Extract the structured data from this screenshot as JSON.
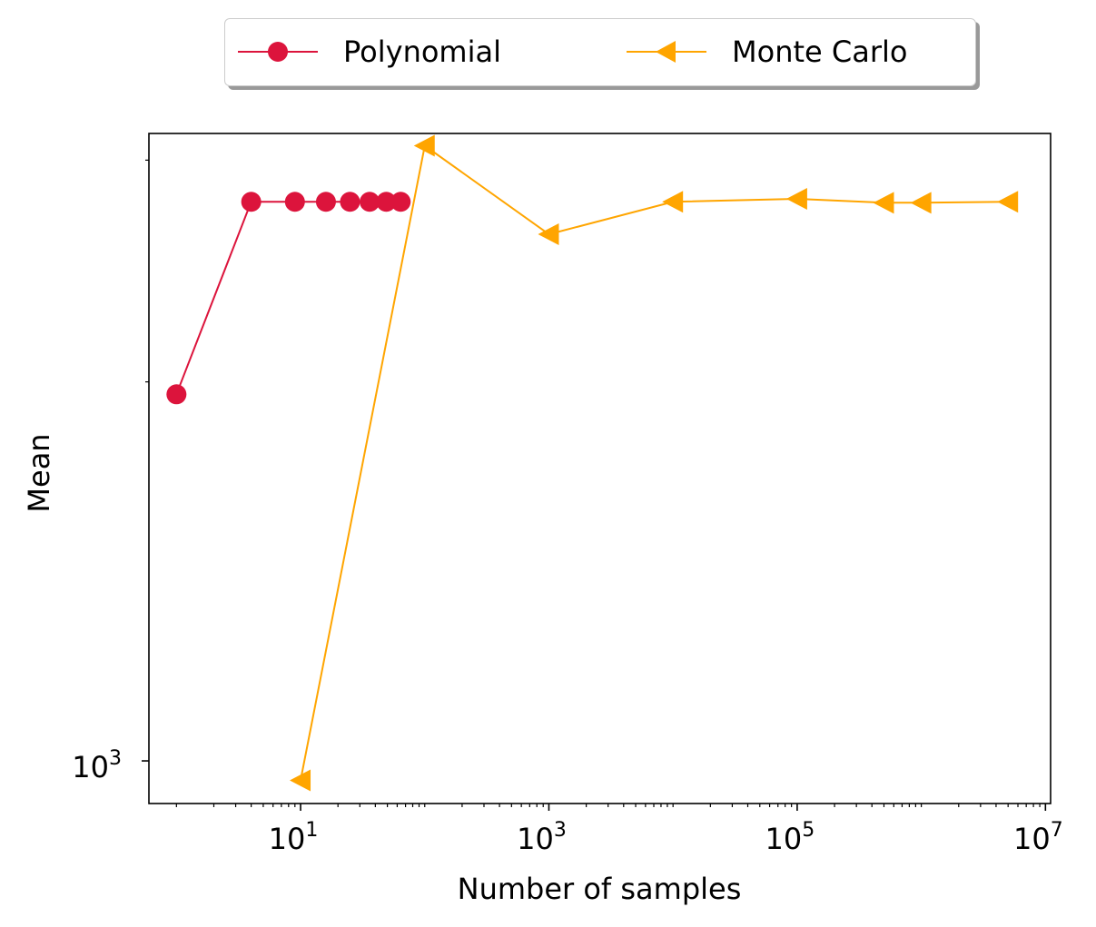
{
  "chart_data": {
    "type": "line",
    "xlabel": "Number of samples",
    "ylabel": "Mean",
    "xscale": "log",
    "yscale": "log",
    "xlim": [
      0.6,
      11000000
    ],
    "ylim": [
      925,
      3150
    ],
    "x_ticks": [
      {
        "base": "10",
        "exp": "1",
        "value": 10
      },
      {
        "base": "10",
        "exp": "3",
        "value": 1000
      },
      {
        "base": "10",
        "exp": "5",
        "value": 100000
      },
      {
        "base": "10",
        "exp": "7",
        "value": 10000000
      }
    ],
    "y_ticks": [
      {
        "base": "10",
        "exp": "3",
        "value": 1000
      }
    ],
    "legend_position": "above plot, centered",
    "grid": false,
    "series": [
      {
        "name": "Polynomial",
        "color": "#dc143c",
        "marker": "circle",
        "x": [
          1,
          4,
          9,
          16,
          25,
          36,
          49,
          64
        ],
        "y": [
          1955,
          2780,
          2780,
          2780,
          2780,
          2780,
          2780,
          2780
        ]
      },
      {
        "name": "Monte Carlo",
        "color": "#ffa500",
        "marker": "triangle-left",
        "x": [
          10,
          100,
          1000,
          10000,
          100000,
          500000,
          1000000,
          5000000
        ],
        "y": [
          965,
          3080,
          2620,
          2780,
          2795,
          2775,
          2775,
          2780
        ]
      }
    ]
  }
}
